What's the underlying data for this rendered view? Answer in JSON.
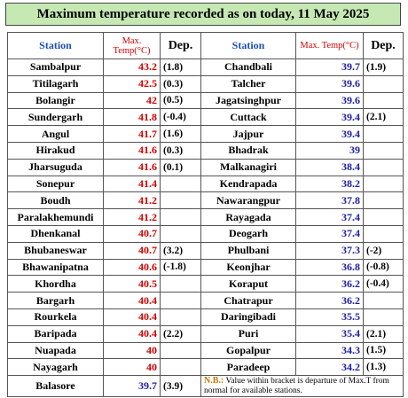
{
  "header": {
    "title": "Maximum temperature recorded as on today, 11 May 2025"
  },
  "table": {
    "columns": [
      "Station",
      "Max. Temp(°C)",
      "Dep."
    ],
    "hot_color": "#d40000",
    "cool_color": "#1c1ca8",
    "left": [
      {
        "station": "Sambalpur",
        "max": 43.2,
        "dep": "(1.8)",
        "hot": true
      },
      {
        "station": "Titilagarh",
        "max": 42.5,
        "dep": "(0.3)",
        "hot": true
      },
      {
        "station": "Bolangir",
        "max": 42,
        "dep": "(0.5)",
        "hot": true
      },
      {
        "station": "Sundergarh",
        "max": 41.8,
        "dep": "(-0.4)",
        "hot": true
      },
      {
        "station": "Angul",
        "max": 41.7,
        "dep": "(1.6)",
        "hot": true
      },
      {
        "station": "Hirakud",
        "max": 41.6,
        "dep": "(0.3)",
        "hot": true
      },
      {
        "station": "Jharsuguda",
        "max": 41.6,
        "dep": "(0.1)",
        "hot": true
      },
      {
        "station": "Sonepur",
        "max": 41.4,
        "hot": true
      },
      {
        "station": "Boudh",
        "max": 41.2,
        "hot": true
      },
      {
        "station": "Paralakhemundi",
        "max": 41.2,
        "hot": true
      },
      {
        "station": "Dhenkanal",
        "max": 40.7,
        "hot": true
      },
      {
        "station": "Bhubaneswar",
        "max": 40.7,
        "dep": "(3.2)",
        "hot": true
      },
      {
        "station": "Bhawanipatna",
        "max": 40.6,
        "dep": "(-1.8)",
        "hot": true
      },
      {
        "station": "Khordha",
        "max": 40.5,
        "hot": true
      },
      {
        "station": "Bargarh",
        "max": 40.4,
        "hot": true
      },
      {
        "station": "Rourkela",
        "max": 40.4,
        "hot": true
      },
      {
        "station": "Baripada",
        "max": 40.4,
        "dep": "(2.2)",
        "hot": true
      },
      {
        "station": "Nuapada",
        "max": 40,
        "hot": true
      },
      {
        "station": "Nayagarh",
        "max": 40,
        "hot": true
      },
      {
        "station": "Balasore",
        "max": 39.7,
        "dep": "(3.9)",
        "hot": false
      }
    ],
    "right": [
      {
        "station": "Chandbali",
        "max": 39.7,
        "dep": "(1.9)",
        "hot": false
      },
      {
        "station": "Talcher",
        "max": 39.6,
        "hot": false
      },
      {
        "station": "Jagatsinghpur",
        "max": 39.6,
        "hot": false
      },
      {
        "station": "Cuttack",
        "max": 39.4,
        "dep": "(2.1)",
        "hot": false
      },
      {
        "station": "Jajpur",
        "max": 39.4,
        "hot": false
      },
      {
        "station": "Bhadrak",
        "max": 39,
        "hot": false
      },
      {
        "station": "Malkanagiri",
        "max": 38.4,
        "hot": false
      },
      {
        "station": "Kendrapada",
        "max": 38.2,
        "hot": false
      },
      {
        "station": "Nawarangpur",
        "max": 37.8,
        "hot": false
      },
      {
        "station": "Rayagada",
        "max": 37.4,
        "hot": false
      },
      {
        "station": "Deogarh",
        "max": 37.4,
        "hot": false
      },
      {
        "station": "Phulbani",
        "max": 37.3,
        "dep": "(-2)",
        "hot": false
      },
      {
        "station": "Keonjhar",
        "max": 36.8,
        "dep": "(-0.8)",
        "hot": false
      },
      {
        "station": "Koraput",
        "max": 36.2,
        "dep": "(-0.4)",
        "hot": false
      },
      {
        "station": "Chatrapur",
        "max": 36.2,
        "hot": false
      },
      {
        "station": "Daringibadi",
        "max": 35.5,
        "hot": false
      },
      {
        "station": "Puri",
        "max": 35.4,
        "dep": "(2.1)",
        "hot": false
      },
      {
        "station": "Gopalpur",
        "max": 34.3,
        "dep": "(1.5)",
        "hot": false
      },
      {
        "station": "Paradeep",
        "max": 34.2,
        "dep": "(1.3)",
        "hot": false
      }
    ]
  },
  "note": {
    "label": "N.B.:",
    "text": "Value within bracket is departure of Max.T from normal for available stations."
  }
}
